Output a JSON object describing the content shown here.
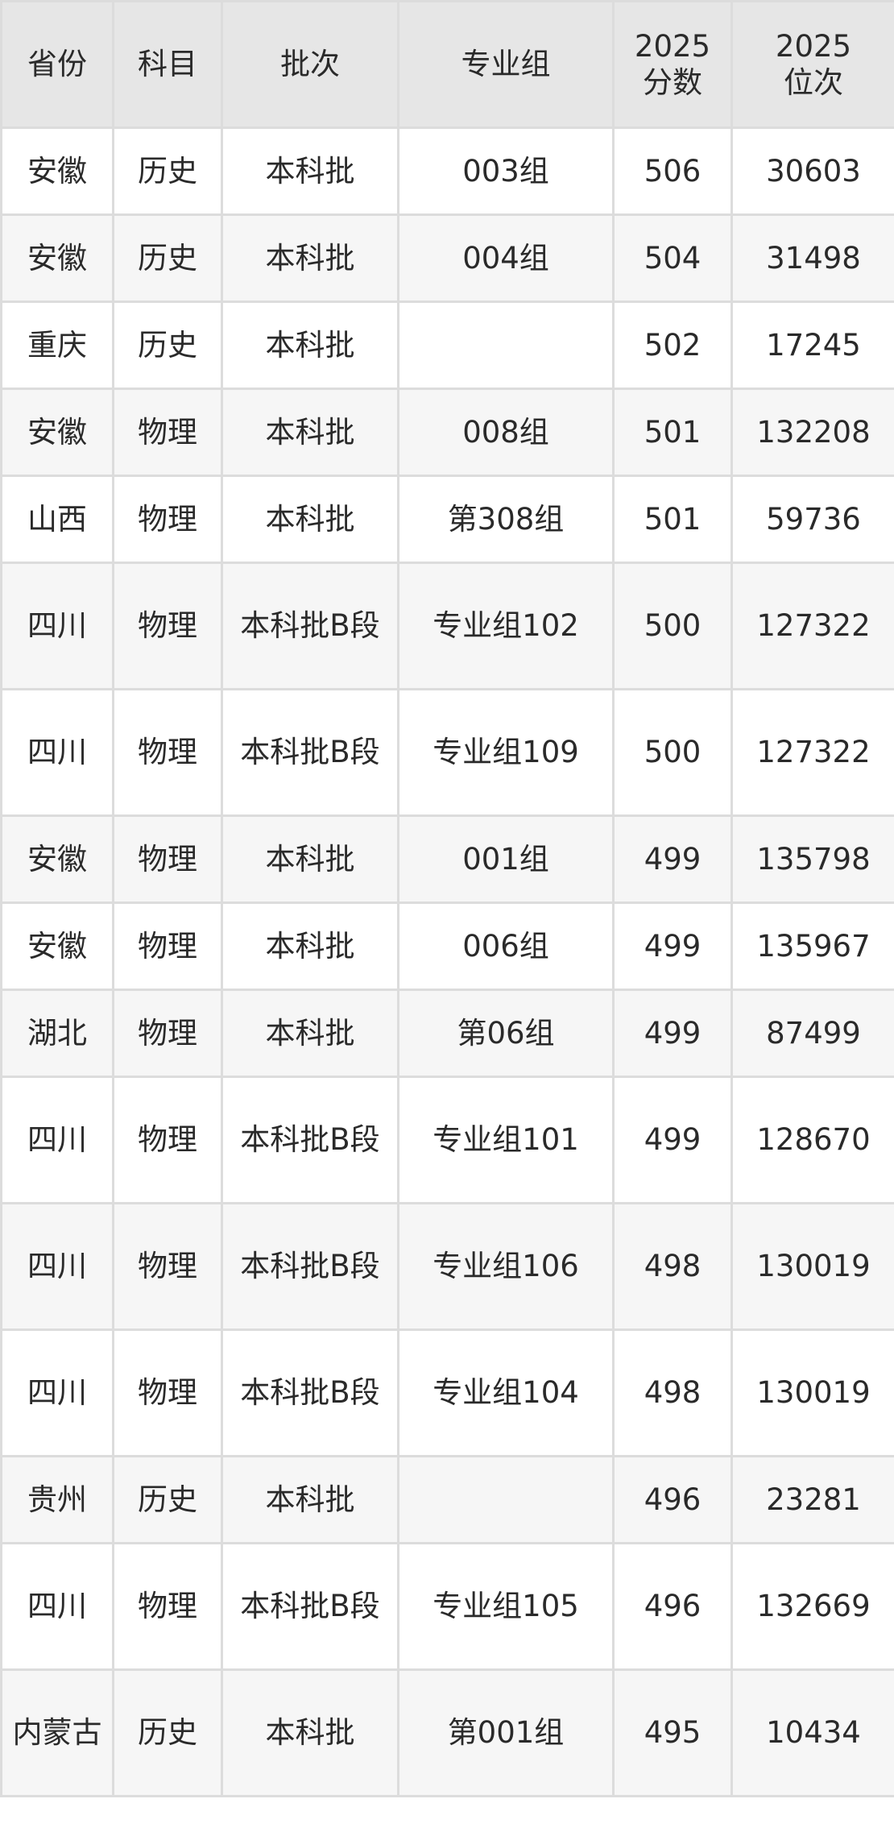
{
  "table": {
    "headers": [
      "省份",
      "科目",
      "批次",
      "专业组",
      "2025\n分数",
      "2025\n位次"
    ],
    "header_lines": [
      [
        "省份"
      ],
      [
        "科目"
      ],
      [
        "批次"
      ],
      [
        "专业组"
      ],
      [
        "2025",
        "分数"
      ],
      [
        "2025",
        "位次"
      ]
    ],
    "rows": [
      [
        "安徽",
        "历史",
        "本科批",
        "003组",
        "506",
        "30603"
      ],
      [
        "安徽",
        "历史",
        "本科批",
        "004组",
        "504",
        "31498"
      ],
      [
        "重庆",
        "历史",
        "本科批",
        "",
        "502",
        "17245"
      ],
      [
        "安徽",
        "物理",
        "本科批",
        "008组",
        "501",
        "132208"
      ],
      [
        "山西",
        "物理",
        "本科批",
        "第308组",
        "501",
        "59736"
      ],
      [
        "四川",
        "物理",
        "本科批B段",
        "专业组102",
        "500",
        "127322"
      ],
      [
        "四川",
        "物理",
        "本科批B段",
        "专业组109",
        "500",
        "127322"
      ],
      [
        "安徽",
        "物理",
        "本科批",
        "001组",
        "499",
        "135798"
      ],
      [
        "安徽",
        "物理",
        "本科批",
        "006组",
        "499",
        "135967"
      ],
      [
        "湖北",
        "物理",
        "本科批",
        "第06组",
        "499",
        "87499"
      ],
      [
        "四川",
        "物理",
        "本科批B段",
        "专业组101",
        "499",
        "128670"
      ],
      [
        "四川",
        "物理",
        "本科批B段",
        "专业组106",
        "498",
        "130019"
      ],
      [
        "四川",
        "物理",
        "本科批B段",
        "专业组104",
        "498",
        "130019"
      ],
      [
        "贵州",
        "历史",
        "本科批",
        "",
        "496",
        "23281"
      ],
      [
        "四川",
        "物理",
        "本科批B段",
        "专业组105",
        "496",
        "132669"
      ],
      [
        "内蒙古",
        "历史",
        "本科批",
        "第001组",
        "495",
        "10434"
      ]
    ]
  }
}
